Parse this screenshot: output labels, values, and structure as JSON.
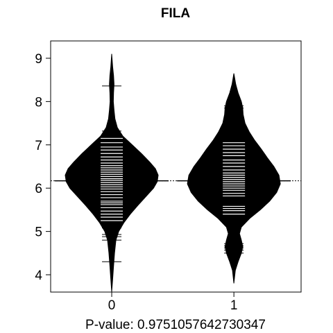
{
  "chart_data": {
    "type": "beanplot",
    "title": "FILA",
    "xlabel": "P-value: 0.9751057642730347",
    "ylabel": "",
    "categories": [
      "0",
      "1"
    ],
    "ylim": [
      3.6,
      9.4
    ],
    "yticks": [
      4,
      5,
      6,
      7,
      8,
      9
    ],
    "overall_mean": 6.17,
    "grid": false,
    "legend": "none",
    "colors": {
      "bean": "#000000",
      "lines": "#ffffff",
      "background": "#ffffff"
    },
    "groups": [
      {
        "category": "0",
        "density": [
          [
            3.6,
            0.0
          ],
          [
            3.9,
            0.02
          ],
          [
            4.2,
            0.04
          ],
          [
            4.5,
            0.06
          ],
          [
            4.8,
            0.09
          ],
          [
            5.0,
            0.15
          ],
          [
            5.2,
            0.26
          ],
          [
            5.4,
            0.4
          ],
          [
            5.6,
            0.56
          ],
          [
            5.8,
            0.73
          ],
          [
            6.0,
            0.9
          ],
          [
            6.15,
            0.98
          ],
          [
            6.3,
            1.0
          ],
          [
            6.45,
            0.94
          ],
          [
            6.6,
            0.82
          ],
          [
            6.8,
            0.64
          ],
          [
            7.0,
            0.44
          ],
          [
            7.2,
            0.24
          ],
          [
            7.4,
            0.12
          ],
          [
            7.6,
            0.07
          ],
          [
            7.8,
            0.05
          ],
          [
            8.0,
            0.035
          ],
          [
            8.2,
            0.04
          ],
          [
            8.4,
            0.05
          ],
          [
            8.6,
            0.04
          ],
          [
            8.8,
            0.02
          ],
          [
            9.1,
            0.0
          ]
        ],
        "values": [
          4.3,
          4.8,
          4.88,
          4.93,
          5.08,
          5.18,
          5.25,
          5.33,
          5.4,
          5.47,
          5.55,
          5.62,
          5.66,
          5.7,
          5.78,
          5.85,
          5.92,
          5.98,
          6.03,
          6.08,
          6.13,
          6.18,
          6.22,
          6.27,
          6.32,
          6.37,
          6.42,
          6.47,
          6.52,
          6.58,
          6.65,
          6.72,
          6.8,
          6.88,
          6.95,
          7.05,
          7.15,
          7.32,
          8.36
        ]
      },
      {
        "category": "1",
        "density": [
          [
            3.8,
            0.0
          ],
          [
            4.1,
            0.03
          ],
          [
            4.3,
            0.09
          ],
          [
            4.5,
            0.16
          ],
          [
            4.65,
            0.19
          ],
          [
            4.8,
            0.16
          ],
          [
            4.95,
            0.12
          ],
          [
            5.1,
            0.16
          ],
          [
            5.3,
            0.34
          ],
          [
            5.5,
            0.57
          ],
          [
            5.7,
            0.77
          ],
          [
            5.9,
            0.92
          ],
          [
            6.1,
            1.0
          ],
          [
            6.3,
            0.97
          ],
          [
            6.5,
            0.86
          ],
          [
            6.7,
            0.72
          ],
          [
            6.9,
            0.59
          ],
          [
            7.1,
            0.45
          ],
          [
            7.3,
            0.33
          ],
          [
            7.5,
            0.24
          ],
          [
            7.7,
            0.2
          ],
          [
            7.85,
            0.19
          ],
          [
            8.0,
            0.16
          ],
          [
            8.2,
            0.09
          ],
          [
            8.4,
            0.04
          ],
          [
            8.65,
            0.0
          ]
        ],
        "values": [
          4.5,
          4.57,
          4.62,
          4.67,
          4.72,
          5.4,
          5.48,
          5.53,
          5.58,
          5.82,
          5.88,
          5.95,
          6.0,
          6.05,
          6.1,
          6.15,
          6.2,
          6.25,
          6.3,
          6.35,
          6.42,
          6.5,
          6.58,
          6.65,
          6.75,
          6.82,
          6.9,
          6.98,
          7.05,
          7.85,
          7.9
        ]
      }
    ]
  }
}
